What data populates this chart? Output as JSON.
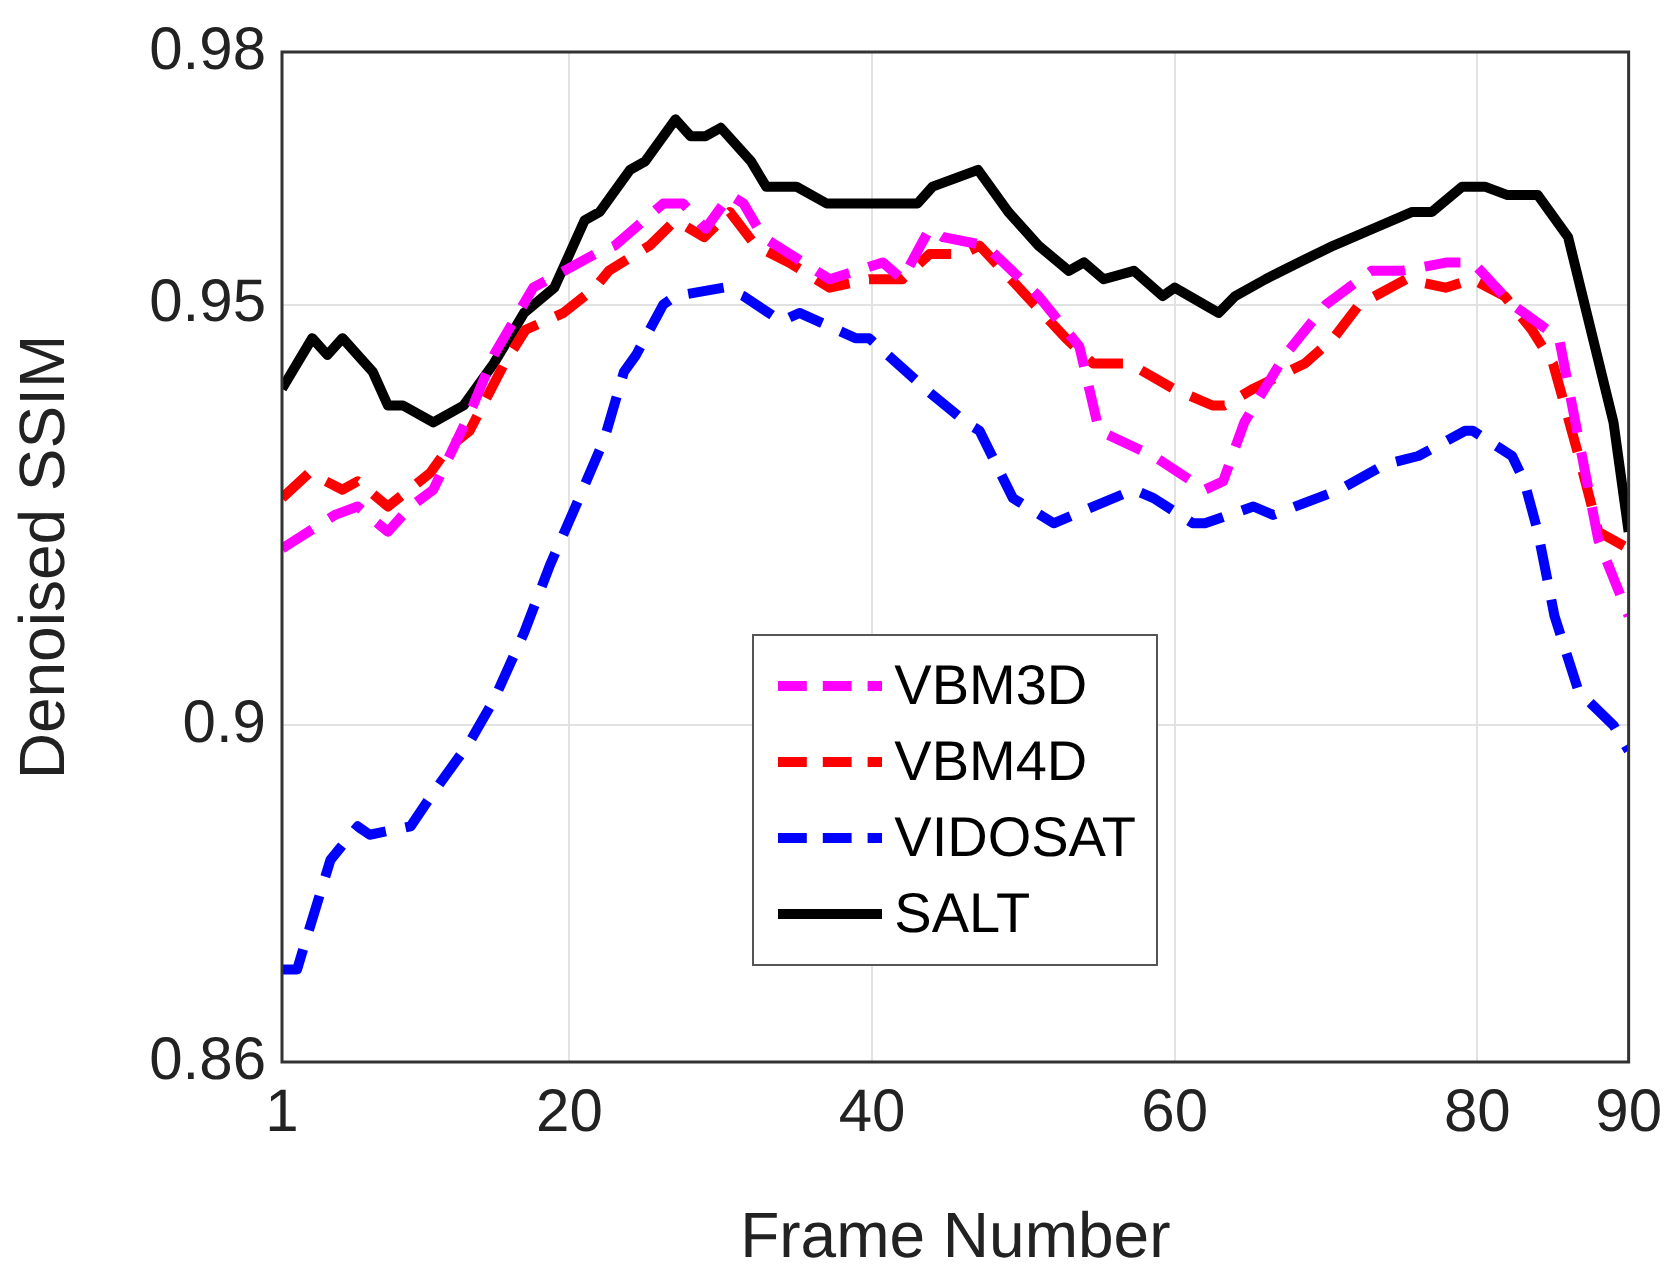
{
  "chart_data": {
    "type": "line",
    "xlabel": "Frame Number",
    "ylabel": "Denoised SSIM",
    "xlim": [
      1,
      90
    ],
    "xticks": [
      1,
      20,
      40,
      60,
      80,
      90
    ],
    "ylim": [
      0.86,
      0.98
    ],
    "yticks": [
      0.86,
      0.9,
      0.95,
      0.98
    ],
    "grid": true,
    "legend": "bottom",
    "marker": "none",
    "series": [
      {
        "name": "VBM3D",
        "color": "#ff00ff",
        "line_style": "dashed",
        "x": [
          1,
          4.5,
          6,
          8,
          9.5,
          11,
          13.4,
          15,
          17.6,
          21.7,
          23,
          26.2,
          27.5,
          29,
          30.6,
          31.5,
          32.8,
          37.2,
          40.7,
          42,
          43.8,
          44.7,
          47.5,
          51,
          53.7,
          55,
          58.6,
          62,
          63.2,
          64.6,
          67.3,
          70,
          73,
          75,
          78,
          79,
          79.7,
          82.3,
          85.4,
          86.7,
          88,
          90
        ],
        "values": [
          0.921,
          0.925,
          0.926,
          0.923,
          0.926,
          0.928,
          0.937,
          0.944,
          0.952,
          0.956,
          0.957,
          0.962,
          0.962,
          0.959,
          0.963,
          0.962,
          0.958,
          0.953,
          0.955,
          0.953,
          0.959,
          0.958,
          0.957,
          0.951,
          0.945,
          0.935,
          0.932,
          0.928,
          0.929,
          0.936,
          0.944,
          0.95,
          0.954,
          0.954,
          0.955,
          0.955,
          0.955,
          0.95,
          0.946,
          0.934,
          0.922,
          0.913
        ]
      },
      {
        "name": "VBM4D",
        "color": "#ff0000",
        "line_style": "dashed",
        "x": [
          1,
          2.8,
          5,
          6,
          8,
          10.8,
          12,
          13.4,
          15.7,
          17.1,
          19.6,
          21.7,
          22.6,
          25.3,
          27,
          28.9,
          30.6,
          32.3,
          34.5,
          37.2,
          39.8,
          42,
          43.8,
          46,
          47.1,
          49.7,
          52.8,
          54.6,
          57,
          59.9,
          62.5,
          63.3,
          65.2,
          68.6,
          70.5,
          72.2,
          75.3,
          77.9,
          79.7,
          81.8,
          83.6,
          85,
          86.7,
          88,
          90
        ],
        "values": [
          0.927,
          0.93,
          0.928,
          0.929,
          0.926,
          0.93,
          0.933,
          0.935,
          0.943,
          0.947,
          0.949,
          0.952,
          0.954,
          0.957,
          0.96,
          0.958,
          0.961,
          0.957,
          0.955,
          0.952,
          0.953,
          0.953,
          0.956,
          0.956,
          0.957,
          0.952,
          0.946,
          0.943,
          0.943,
          0.94,
          0.938,
          0.938,
          0.94,
          0.943,
          0.946,
          0.95,
          0.953,
          0.952,
          0.953,
          0.951,
          0.947,
          0.943,
          0.932,
          0.923,
          0.921
        ]
      },
      {
        "name": "VIDOSAT",
        "color": "#0000ff",
        "line_style": "dashed",
        "x": [
          1,
          2,
          2.5,
          4.2,
          6,
          6.8,
          9.5,
          11,
          13.4,
          15,
          17,
          18.7,
          20.4,
          22.3,
          23.6,
          24.4,
          26.2,
          27,
          30.2,
          31.5,
          34,
          35.2,
          38.9,
          39.8,
          42.9,
          43.5,
          46.2,
          47.1,
          49.3,
          52,
          53.3,
          57.3,
          58.6,
          61.2,
          62,
          65.2,
          66.5,
          70.9,
          73.9,
          76.1,
          79.2,
          79.7,
          82.3,
          83.1,
          84,
          85.1,
          86.7,
          89,
          90
        ],
        "values": [
          0.871,
          0.871,
          0.874,
          0.884,
          0.888,
          0.887,
          0.888,
          0.892,
          0.898,
          0.903,
          0.911,
          0.919,
          0.926,
          0.934,
          0.942,
          0.944,
          0.95,
          0.951,
          0.952,
          0.951,
          0.948,
          0.949,
          0.946,
          0.946,
          0.941,
          0.94,
          0.936,
          0.935,
          0.927,
          0.924,
          0.925,
          0.928,
          0.927,
          0.924,
          0.924,
          0.926,
          0.925,
          0.928,
          0.931,
          0.932,
          0.935,
          0.935,
          0.932,
          0.929,
          0.923,
          0.913,
          0.904,
          0.9,
          0.897
        ]
      },
      {
        "name": "SALT",
        "color": "#000000",
        "line_style": "solid",
        "x": [
          1,
          3,
          4,
          5,
          7,
          8,
          9,
          11,
          13,
          15,
          17,
          19,
          21,
          22,
          24,
          25,
          27,
          28,
          29,
          30,
          32,
          33,
          35,
          37,
          40,
          42,
          43,
          44,
          47,
          49,
          51,
          53,
          54,
          55.3,
          57.3,
          59.2,
          60,
          62.9,
          64,
          66,
          68.2,
          70.5,
          73.1,
          75.7,
          77,
          79,
          80.5,
          82,
          84,
          86,
          89,
          90
        ],
        "values": [
          0.94,
          0.946,
          0.944,
          0.946,
          0.942,
          0.938,
          0.938,
          0.936,
          0.938,
          0.943,
          0.949,
          0.952,
          0.96,
          0.961,
          0.966,
          0.967,
          0.972,
          0.97,
          0.97,
          0.971,
          0.967,
          0.964,
          0.964,
          0.962,
          0.962,
          0.962,
          0.962,
          0.964,
          0.966,
          0.961,
          0.957,
          0.954,
          0.955,
          0.953,
          0.954,
          0.951,
          0.952,
          0.949,
          0.951,
          0.953,
          0.955,
          0.957,
          0.959,
          0.961,
          0.961,
          0.964,
          0.964,
          0.963,
          0.963,
          0.958,
          0.936,
          0.923
        ]
      }
    ]
  }
}
